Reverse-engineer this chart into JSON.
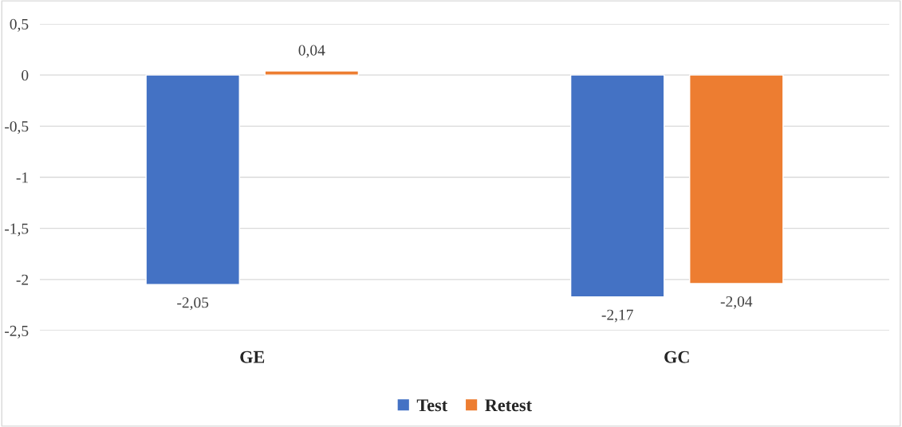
{
  "chart_data": {
    "type": "bar",
    "categories": [
      "GE",
      "GC"
    ],
    "series": [
      {
        "name": "Test",
        "color": "#4472c4",
        "values": [
          -2.05,
          -2.17
        ],
        "value_labels": [
          "-2,05",
          "-2,17"
        ]
      },
      {
        "name": "Retest",
        "color": "#ed7d31",
        "values": [
          0.04,
          -2.04
        ],
        "value_labels": [
          "0,04",
          "-2,04"
        ]
      }
    ],
    "ylim": [
      -2.5,
      0.5
    ],
    "yticks": [
      {
        "value": 0.5,
        "label": "0,5"
      },
      0,
      {
        "value": -0.5,
        "label": "-0,5"
      },
      -1,
      {
        "value": -1.5,
        "label": "-1,5"
      },
      -2,
      {
        "value": -2.5,
        "label": "-2,5"
      }
    ],
    "grid": "y",
    "legend": "bottom"
  }
}
